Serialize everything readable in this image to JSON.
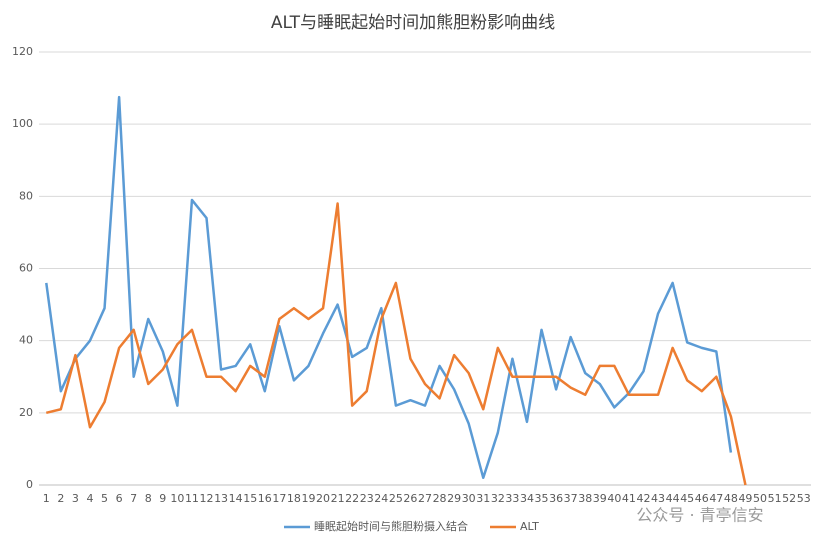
{
  "chart_data": {
    "type": "line",
    "title": "ALT与睡眠起始时间加熊胆粉影响曲线",
    "categories": [
      "1",
      "2",
      "3",
      "4",
      "5",
      "6",
      "7",
      "8",
      "9",
      "10",
      "11",
      "12",
      "13",
      "14",
      "15",
      "16",
      "17",
      "18",
      "19",
      "20",
      "21",
      "22",
      "23",
      "24",
      "25",
      "26",
      "27",
      "28",
      "29",
      "30",
      "31",
      "32",
      "33",
      "34",
      "35",
      "36",
      "37",
      "38",
      "39",
      "40",
      "41",
      "42",
      "43",
      "44",
      "45",
      "46",
      "47",
      "48",
      "49",
      "50",
      "51",
      "52",
      "53"
    ],
    "series": [
      {
        "name": "睡眠起始时间与熊胆粉摄入结合",
        "color": "#5b9bd5",
        "values": [
          56,
          26,
          35,
          40,
          49,
          107.5,
          30,
          46,
          37,
          22,
          79,
          74,
          32,
          33,
          39,
          26,
          44,
          29,
          33,
          42,
          50,
          35.5,
          38,
          49,
          22,
          23.5,
          22,
          33,
          26.5,
          17,
          2,
          14.5,
          35,
          17.5,
          43,
          26.5,
          41,
          31,
          28,
          21.5,
          25.5,
          31.5,
          47.5,
          56,
          39.5,
          38,
          37,
          9,
          null,
          null,
          null,
          null,
          null
        ]
      },
      {
        "name": "ALT",
        "color": "#ed7d31",
        "values": [
          20,
          21,
          36,
          16,
          23,
          38,
          43,
          28,
          32,
          39,
          43,
          30,
          30,
          26,
          33,
          30,
          46,
          49,
          46,
          49,
          78,
          22,
          26,
          46,
          56,
          35,
          28,
          24,
          36,
          31,
          21,
          38,
          30,
          30,
          30,
          30,
          27,
          25,
          33,
          33,
          25,
          25,
          25,
          38,
          29,
          26,
          30,
          19,
          0,
          null,
          null,
          null,
          null
        ]
      }
    ],
    "ylim": [
      0,
      120
    ],
    "yticks": [
      0,
      20,
      40,
      60,
      80,
      100,
      120
    ],
    "grid": true,
    "legend": "bottom",
    "watermark": "公众号 · 青亭信安"
  }
}
